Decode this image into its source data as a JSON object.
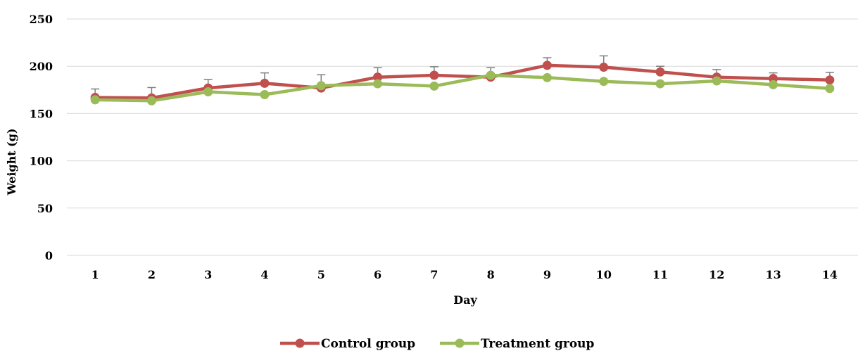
{
  "chart_data": {
    "type": "line",
    "title": "",
    "xlabel": "Day",
    "ylabel": "Weight (g)",
    "categories": [
      "1",
      "2",
      "3",
      "4",
      "5",
      "6",
      "7",
      "8",
      "9",
      "10",
      "11",
      "12",
      "13",
      "14"
    ],
    "yticks": [
      "0",
      "50",
      "100",
      "150",
      "200",
      "250"
    ],
    "ylim": [
      0,
      250
    ],
    "grid": true,
    "legend_position": "bottom",
    "series": [
      {
        "name": "Control group",
        "color": "#c0504d",
        "values": [
          167,
          166.5,
          177,
          182,
          177,
          188.5,
          190.5,
          188.5,
          201,
          199,
          194,
          188.5,
          187,
          185.5
        ],
        "error": [
          9,
          11,
          9,
          11,
          14,
          10,
          9,
          10,
          8,
          12,
          6,
          8,
          6,
          8
        ]
      },
      {
        "name": "Treatment group",
        "color": "#9bbb59",
        "values": [
          164.5,
          163.5,
          173,
          170,
          179.5,
          181.5,
          179,
          190.5,
          188,
          184,
          181.5,
          184.5,
          180.5,
          176.5
        ],
        "error": [
          0,
          0,
          0,
          0,
          0,
          0,
          0,
          0,
          0,
          0,
          0,
          0,
          0,
          0
        ]
      }
    ]
  }
}
